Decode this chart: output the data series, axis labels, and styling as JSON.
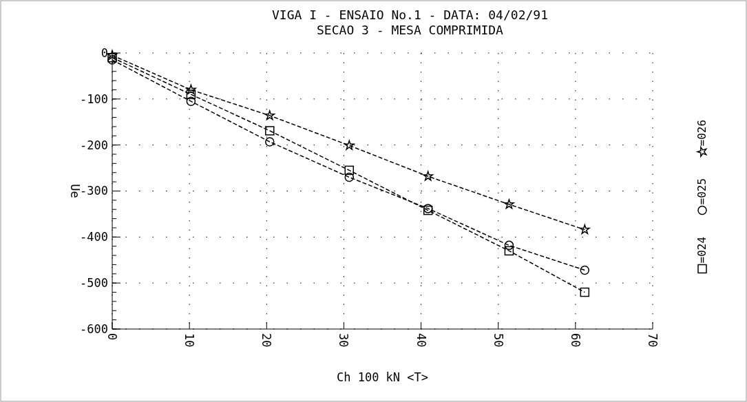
{
  "chart_data": {
    "type": "line",
    "title": "VIGA I - ENSAIO No.1 - DATA: 04/02/91",
    "subtitle": "SECAO 3 - MESA COMPRIMIDA",
    "xlabel": "Ch 100 kN  <T>",
    "ylabel": "Ue",
    "x": [
      0,
      10.2,
      20.4,
      30.7,
      40.9,
      51.4,
      61.2
    ],
    "series": [
      {
        "name": "=024",
        "color": "#000000",
        "marker": "square",
        "values": [
          -10,
          -90,
          -169,
          -255,
          -342,
          -430,
          -520
        ]
      },
      {
        "name": "=025",
        "color": "#000000",
        "marker": "circle",
        "values": [
          -15,
          -105,
          -193,
          -270,
          -338,
          -418,
          -472
        ]
      },
      {
        "name": "=026",
        "color": "#000000",
        "marker": "star",
        "values": [
          -5,
          -80,
          -136,
          -201,
          -268,
          -329,
          -384
        ]
      }
    ],
    "xlim": [
      0,
      70
    ],
    "xticks": [
      0,
      10,
      20,
      30,
      40,
      50,
      60,
      70
    ],
    "ylim": [
      -600,
      0
    ],
    "yticks": [
      -600,
      -500,
      -400,
      -300,
      -200,
      -100,
      0
    ],
    "grid": true,
    "line_style": "dashed"
  }
}
